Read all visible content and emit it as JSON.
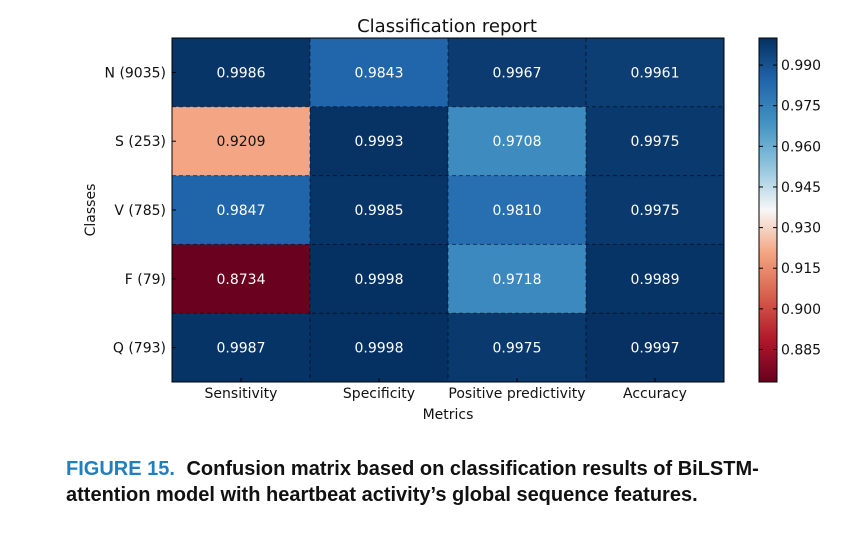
{
  "chart_data": {
    "type": "heatmap",
    "title": "Classification report",
    "xlabel": "Metrics",
    "ylabel": "Classes",
    "columns": [
      "Sensitivity",
      "Specificity",
      "Positive predictivity",
      "Accuracy"
    ],
    "rows": [
      "N (9035)",
      "S (253)",
      "V (785)",
      "F (79)",
      "Q (793)"
    ],
    "values": [
      [
        0.9986,
        0.9843,
        0.9967,
        0.9961
      ],
      [
        0.9209,
        0.9993,
        0.9708,
        0.9975
      ],
      [
        0.9847,
        0.9985,
        0.981,
        0.9975
      ],
      [
        0.8734,
        0.9998,
        0.9718,
        0.9989
      ],
      [
        0.9987,
        0.9998,
        0.9975,
        0.9997
      ]
    ],
    "value_labels": [
      [
        "0.9986",
        "0.9843",
        "0.9967",
        "0.9961"
      ],
      [
        "0.9209",
        "0.9993",
        "0.9708",
        "0.9975"
      ],
      [
        "0.9847",
        "0.9985",
        "0.9810",
        "0.9975"
      ],
      [
        "0.8734",
        "0.9998",
        "0.9718",
        "0.9989"
      ],
      [
        "0.9987",
        "0.9998",
        "0.9975",
        "0.9997"
      ]
    ],
    "colormap": "RdBu",
    "color_range": [
      0.873,
      1.0
    ],
    "colorbar_ticks": [
      "0.990",
      "0.975",
      "0.960",
      "0.945",
      "0.930",
      "0.915",
      "0.900",
      "0.885"
    ]
  },
  "caption": {
    "label": "FIGURE 15.",
    "text": "Confusion matrix based on classification results of BiLSTM-attention model with heartbeat activity’s global sequence features."
  }
}
